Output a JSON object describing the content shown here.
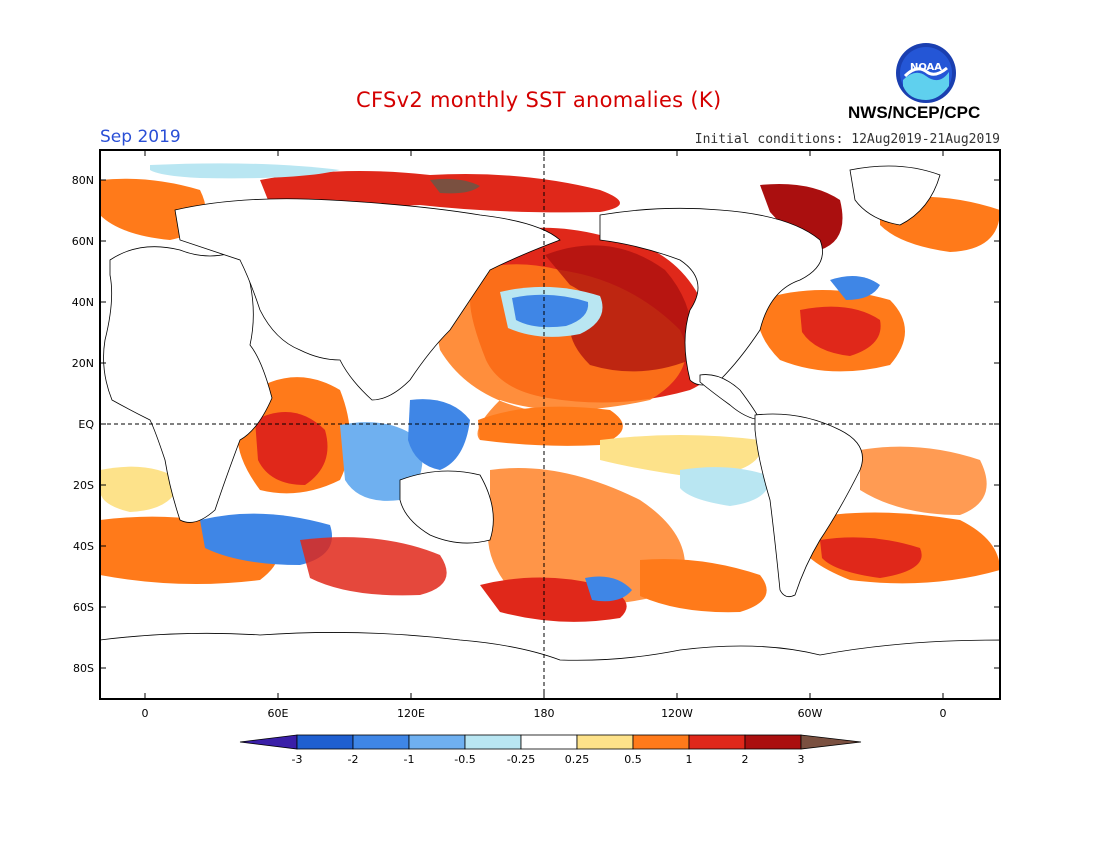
{
  "header": {
    "title": "CFSv2 monthly SST anomalies (K)",
    "month": "Sep 2019",
    "initial_conditions": "Initial conditions: 12Aug2019-21Aug2019",
    "org": "NWS/NCEP/CPC",
    "logo_text": "NOAA"
  },
  "map": {
    "lat_ticks": [
      "80N",
      "60N",
      "40N",
      "20N",
      "EQ",
      "20S",
      "40S",
      "60S",
      "80S"
    ],
    "lon_ticks": [
      "0",
      "60E",
      "120E",
      "180",
      "120W",
      "60W",
      "0"
    ]
  },
  "colorbar": {
    "labels": [
      "-3",
      "-2",
      "-1",
      "-0.5",
      "-0.25",
      "0.25",
      "0.5",
      "1",
      "2",
      "3"
    ],
    "colors": [
      "#3a1fa8",
      "#1f5fd0",
      "#3f86e6",
      "#6fb0f0",
      "#b9e6f2",
      "#ffffff",
      "#fde28a",
      "#ff7a1a",
      "#e0281a",
      "#aa0f0f",
      "#7a5040"
    ]
  },
  "anomaly_colors": {
    "strong_warm": "#aa0f0f",
    "warm": "#e0281a",
    "moderate_warm": "#ff7a1a",
    "weak_warm": "#fde28a",
    "weak_cool": "#b9e6f2",
    "moderate_cool": "#6fb0f0",
    "cool": "#3f86e6"
  }
}
